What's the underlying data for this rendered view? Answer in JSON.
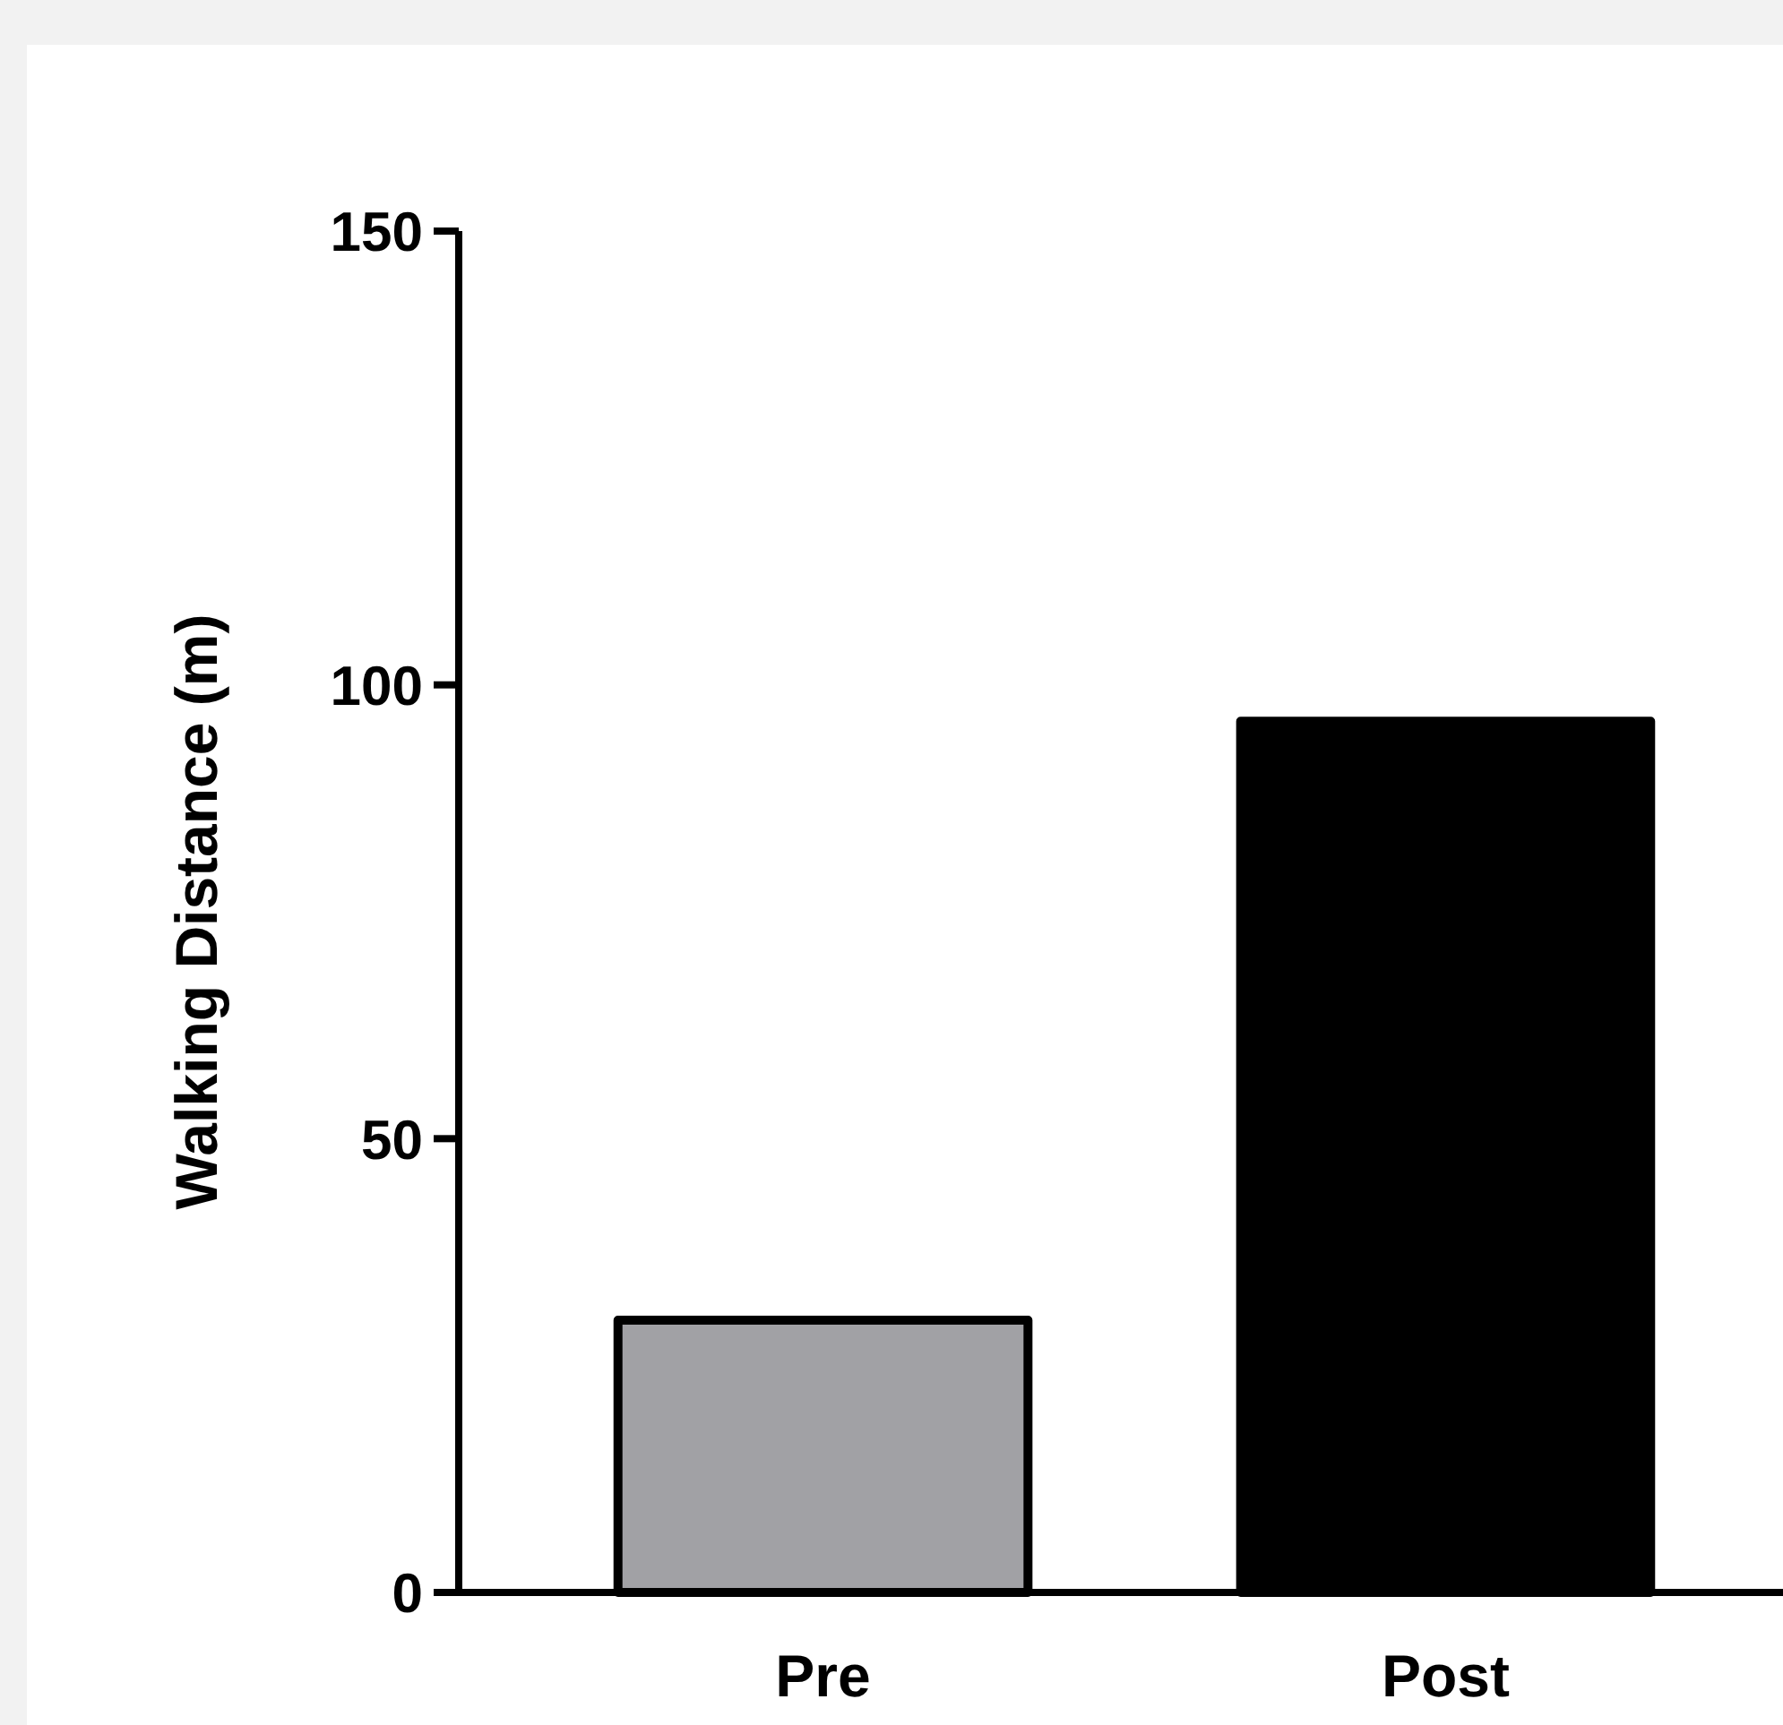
{
  "chart_data": {
    "type": "bar",
    "ylabel": "Walking Distance (m)",
    "categories": [
      "Pre",
      "Post"
    ],
    "values": [
      30,
      96
    ],
    "colors": [
      "#a1a1a5",
      "#000000"
    ],
    "ylim": [
      0,
      150
    ],
    "yticks": [
      0,
      50,
      100,
      150
    ],
    "grid": false
  }
}
